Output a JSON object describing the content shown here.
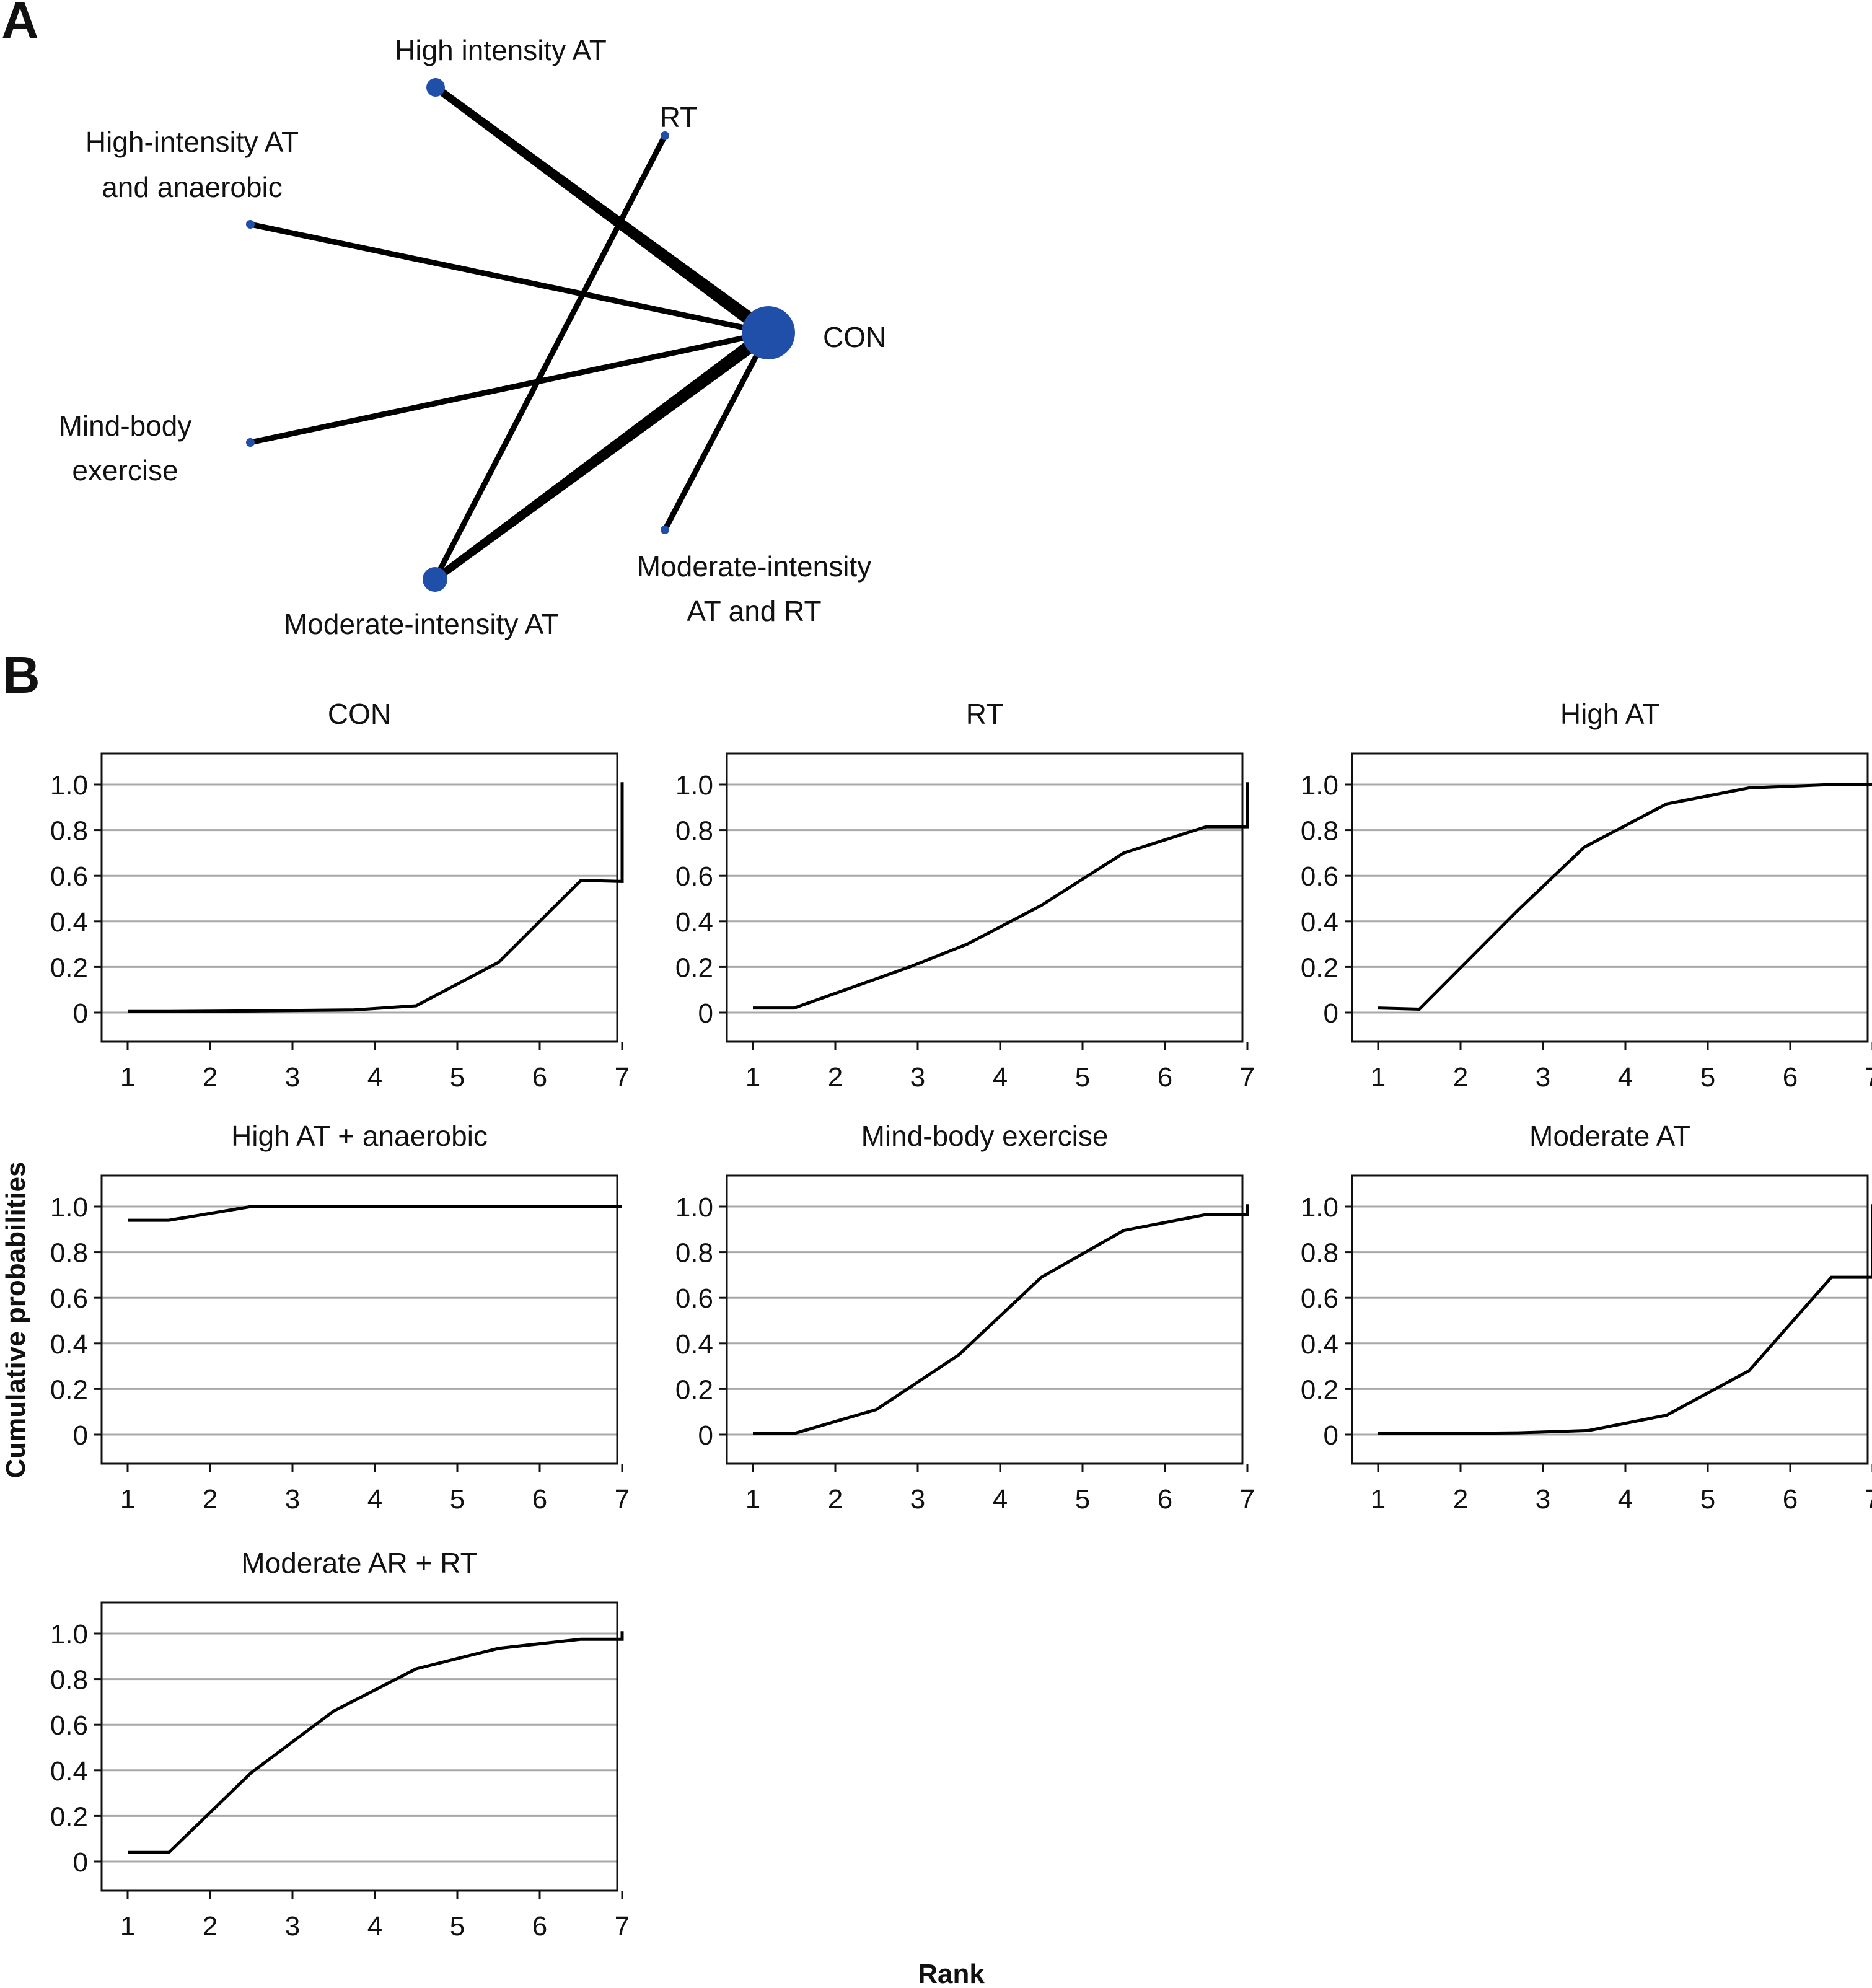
{
  "panels": {
    "a_label": "A",
    "b_label": "B"
  },
  "network": {
    "node_color": "#1f4fa8",
    "edge_color": "#000000",
    "nodes": [
      {
        "id": "high_at",
        "label_lines": [
          "High intensity AT"
        ]
      },
      {
        "id": "rt",
        "label_lines": [
          "RT"
        ]
      },
      {
        "id": "high_at_anaerobic",
        "label_lines": [
          "High-intensity AT",
          "and anaerobic"
        ]
      },
      {
        "id": "con",
        "label_lines": [
          "CON"
        ]
      },
      {
        "id": "mind_body",
        "label_lines": [
          "Mind-body",
          "exercise"
        ]
      },
      {
        "id": "moderate_at",
        "label_lines": [
          "Moderate-intensity AT"
        ]
      },
      {
        "id": "moderate_at_rt",
        "label_lines": [
          "Moderate-intensity",
          "AT and RT"
        ]
      }
    ],
    "edges": [
      {
        "from": "high_at",
        "to": "con",
        "weight": "thick"
      },
      {
        "from": "moderate_at",
        "to": "con",
        "weight": "thick"
      },
      {
        "from": "high_at_anaerobic",
        "to": "con",
        "weight": "thin"
      },
      {
        "from": "mind_body",
        "to": "con",
        "weight": "thin"
      },
      {
        "from": "moderate_at_rt",
        "to": "con",
        "weight": "thin"
      },
      {
        "from": "rt",
        "to": "moderate_at",
        "weight": "thin"
      }
    ]
  },
  "chart_data": {
    "type": "line",
    "subtype": "small-multiples cumulative ranking (SUCRA) plots",
    "xlabel": "Rank",
    "ylabel": "Cumulative probabilities",
    "xlim": [
      1,
      7
    ],
    "ylim": [
      -0.13,
      1.14
    ],
    "x_ticks": [
      "1",
      "2",
      "3",
      "4",
      "5",
      "6",
      "7"
    ],
    "y_ticks": [
      "0",
      "0.2",
      "0.4",
      "0.6",
      "0.8",
      "1.0"
    ],
    "y_tick_values": [
      0,
      0.2,
      0.4,
      0.6,
      0.8,
      1.0
    ],
    "grid": "horizontal",
    "gridline_color": "#a8a8a8",
    "line_color": "#000000",
    "panels": [
      {
        "title": "CON",
        "points": [
          [
            1,
            0.005
          ],
          [
            1.5,
            0.005
          ],
          [
            2.5,
            0.007
          ],
          [
            3.75,
            0.012
          ],
          [
            4.5,
            0.03
          ],
          [
            5.5,
            0.22
          ],
          [
            6.5,
            0.58
          ],
          [
            7,
            0.575
          ],
          [
            7,
            1.01
          ]
        ]
      },
      {
        "title": "RT",
        "points": [
          [
            1,
            0.02
          ],
          [
            1.5,
            0.02
          ],
          [
            2.9,
            0.2
          ],
          [
            3.6,
            0.3
          ],
          [
            4.5,
            0.47
          ],
          [
            5.5,
            0.7
          ],
          [
            6.5,
            0.815
          ],
          [
            7,
            0.815
          ],
          [
            7,
            1.01
          ]
        ]
      },
      {
        "title": "High AT",
        "points": [
          [
            1,
            0.02
          ],
          [
            1.5,
            0.015
          ],
          [
            2.7,
            0.45
          ],
          [
            3.5,
            0.725
          ],
          [
            4.5,
            0.915
          ],
          [
            5.5,
            0.985
          ],
          [
            6.5,
            1.0
          ],
          [
            7,
            1.0
          ]
        ]
      },
      {
        "title": "High AT + anaerobic",
        "points": [
          [
            1,
            0.94
          ],
          [
            1.5,
            0.94
          ],
          [
            2.5,
            1.0
          ],
          [
            3.5,
            1.0
          ],
          [
            4.5,
            1.0
          ],
          [
            5.5,
            1.0
          ],
          [
            6.5,
            1.0
          ],
          [
            7,
            1.0
          ]
        ]
      },
      {
        "title": "Mind-body exercise",
        "points": [
          [
            1,
            0.005
          ],
          [
            1.5,
            0.005
          ],
          [
            2.5,
            0.11
          ],
          [
            3.5,
            0.35
          ],
          [
            4.5,
            0.69
          ],
          [
            5.5,
            0.895
          ],
          [
            6.5,
            0.965
          ],
          [
            7,
            0.965
          ],
          [
            7,
            1.01
          ]
        ]
      },
      {
        "title": "Moderate AT",
        "points": [
          [
            1,
            0.005
          ],
          [
            2,
            0.005
          ],
          [
            2.7,
            0.008
          ],
          [
            3.55,
            0.018
          ],
          [
            4.5,
            0.085
          ],
          [
            5.5,
            0.28
          ],
          [
            6.5,
            0.69
          ],
          [
            7,
            0.69
          ],
          [
            7,
            1.01
          ]
        ]
      },
      {
        "title": "Moderate AR + RT",
        "points": [
          [
            1,
            0.04
          ],
          [
            1.5,
            0.04
          ],
          [
            2.5,
            0.39
          ],
          [
            3.5,
            0.66
          ],
          [
            4.5,
            0.845
          ],
          [
            5.5,
            0.935
          ],
          [
            6.5,
            0.975
          ],
          [
            7,
            0.975
          ],
          [
            7,
            1.01
          ]
        ]
      }
    ]
  }
}
